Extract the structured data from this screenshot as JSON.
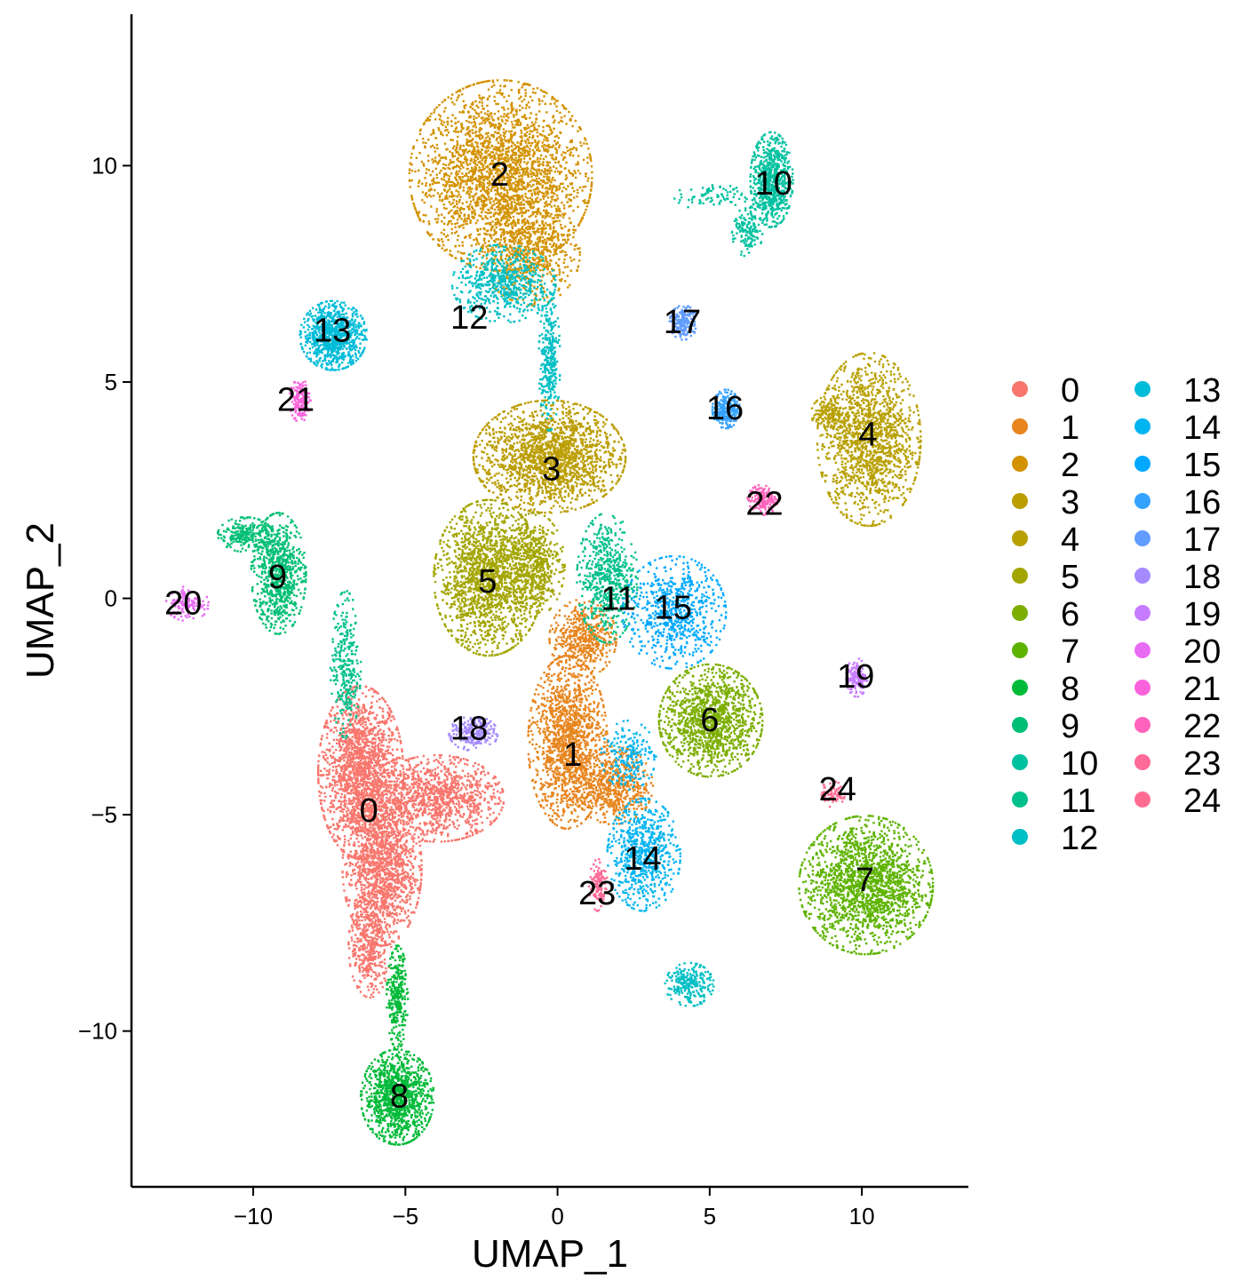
{
  "chart_data": {
    "type": "scatter",
    "xlabel": "UMAP_1",
    "ylabel": "UMAP_2",
    "xlim": [
      -14,
      13.5
    ],
    "ylim": [
      -13.6,
      13.5
    ],
    "x_ticks": [
      -10,
      -5,
      0,
      5,
      10
    ],
    "y_ticks": [
      -10,
      -5,
      0,
      5,
      10
    ],
    "x_tick_labels": [
      "−10",
      "−5",
      "0",
      "5",
      "10"
    ],
    "y_tick_labels": [
      "−10",
      "−5",
      "0",
      "5",
      "10"
    ],
    "grid": false,
    "legend_position": "right",
    "clusters": [
      {
        "name": "0",
        "color": "#F8766D",
        "center": [
          -6.2,
          -4.9
        ],
        "label_pos": [
          -6.2,
          -4.9
        ]
      },
      {
        "name": "1",
        "color": "#E7851E",
        "center": [
          0.5,
          -3.6
        ],
        "label_pos": [
          0.5,
          -3.6
        ]
      },
      {
        "name": "2",
        "color": "#D39200",
        "center": [
          -1.9,
          9.8
        ],
        "label_pos": [
          -1.9,
          9.8
        ]
      },
      {
        "name": "3",
        "color": "#BB9D00",
        "center": [
          -0.2,
          3.0
        ],
        "label_pos": [
          -0.2,
          3.0
        ]
      },
      {
        "name": "4",
        "color": "#B8A000",
        "center": [
          10.2,
          3.8
        ],
        "label_pos": [
          10.2,
          3.8
        ]
      },
      {
        "name": "5",
        "color": "#A3A500",
        "center": [
          -2.3,
          0.4
        ],
        "label_pos": [
          -2.3,
          0.4
        ]
      },
      {
        "name": "6",
        "color": "#7CAE00",
        "center": [
          5.0,
          -2.8
        ],
        "label_pos": [
          5.0,
          -2.8
        ]
      },
      {
        "name": "7",
        "color": "#5EB300",
        "center": [
          10.1,
          -6.5
        ],
        "label_pos": [
          10.1,
          -6.5
        ]
      },
      {
        "name": "8",
        "color": "#00BA38",
        "center": [
          -5.2,
          -11.5
        ],
        "label_pos": [
          -5.2,
          -11.5
        ]
      },
      {
        "name": "9",
        "color": "#00BF74",
        "center": [
          -9.2,
          0.5
        ],
        "label_pos": [
          -9.2,
          0.5
        ]
      },
      {
        "name": "10",
        "color": "#00C19F",
        "center": [
          7.1,
          9.6
        ],
        "label_pos": [
          7.1,
          9.6
        ]
      },
      {
        "name": "11",
        "color": "#00C08B",
        "center": [
          2.0,
          0.0
        ],
        "label_pos": [
          2.0,
          0.0
        ]
      },
      {
        "name": "12",
        "color": "#00BFC4",
        "center": [
          -2.9,
          6.5
        ],
        "label_pos": [
          -2.9,
          6.5
        ]
      },
      {
        "name": "13",
        "color": "#00BCD8",
        "center": [
          -7.4,
          6.2
        ],
        "label_pos": [
          -7.4,
          6.2
        ]
      },
      {
        "name": "14",
        "color": "#00B4F0",
        "center": [
          2.8,
          -6.0
        ],
        "label_pos": [
          2.8,
          -6.0
        ]
      },
      {
        "name": "15",
        "color": "#00A9FF",
        "center": [
          3.8,
          -0.2
        ],
        "label_pos": [
          3.8,
          -0.2
        ]
      },
      {
        "name": "16",
        "color": "#35A2FF",
        "center": [
          5.5,
          4.4
        ],
        "label_pos": [
          5.5,
          4.4
        ]
      },
      {
        "name": "17",
        "color": "#619CFF",
        "center": [
          4.1,
          6.4
        ],
        "label_pos": [
          4.1,
          6.4
        ]
      },
      {
        "name": "18",
        "color": "#A58AFF",
        "center": [
          -2.9,
          -3.0
        ],
        "label_pos": [
          -2.9,
          -3.0
        ]
      },
      {
        "name": "19",
        "color": "#C77CFF",
        "center": [
          9.8,
          -1.8
        ],
        "label_pos": [
          9.8,
          -1.8
        ]
      },
      {
        "name": "20",
        "color": "#E76BF3",
        "center": [
          -12.3,
          -0.1
        ],
        "label_pos": [
          -12.3,
          -0.1
        ]
      },
      {
        "name": "21",
        "color": "#FA62DB",
        "center": [
          -8.6,
          4.6
        ],
        "label_pos": [
          -8.6,
          4.6
        ]
      },
      {
        "name": "22",
        "color": "#FF62BC",
        "center": [
          6.8,
          2.2
        ],
        "label_pos": [
          6.8,
          2.2
        ]
      },
      {
        "name": "23",
        "color": "#FF6A98",
        "center": [
          1.3,
          -6.8
        ],
        "label_pos": [
          1.3,
          -6.8
        ]
      },
      {
        "name": "24",
        "color": "#FF6C91",
        "center": [
          9.2,
          -4.4
        ],
        "label_pos": [
          9.2,
          -4.4
        ]
      }
    ]
  }
}
